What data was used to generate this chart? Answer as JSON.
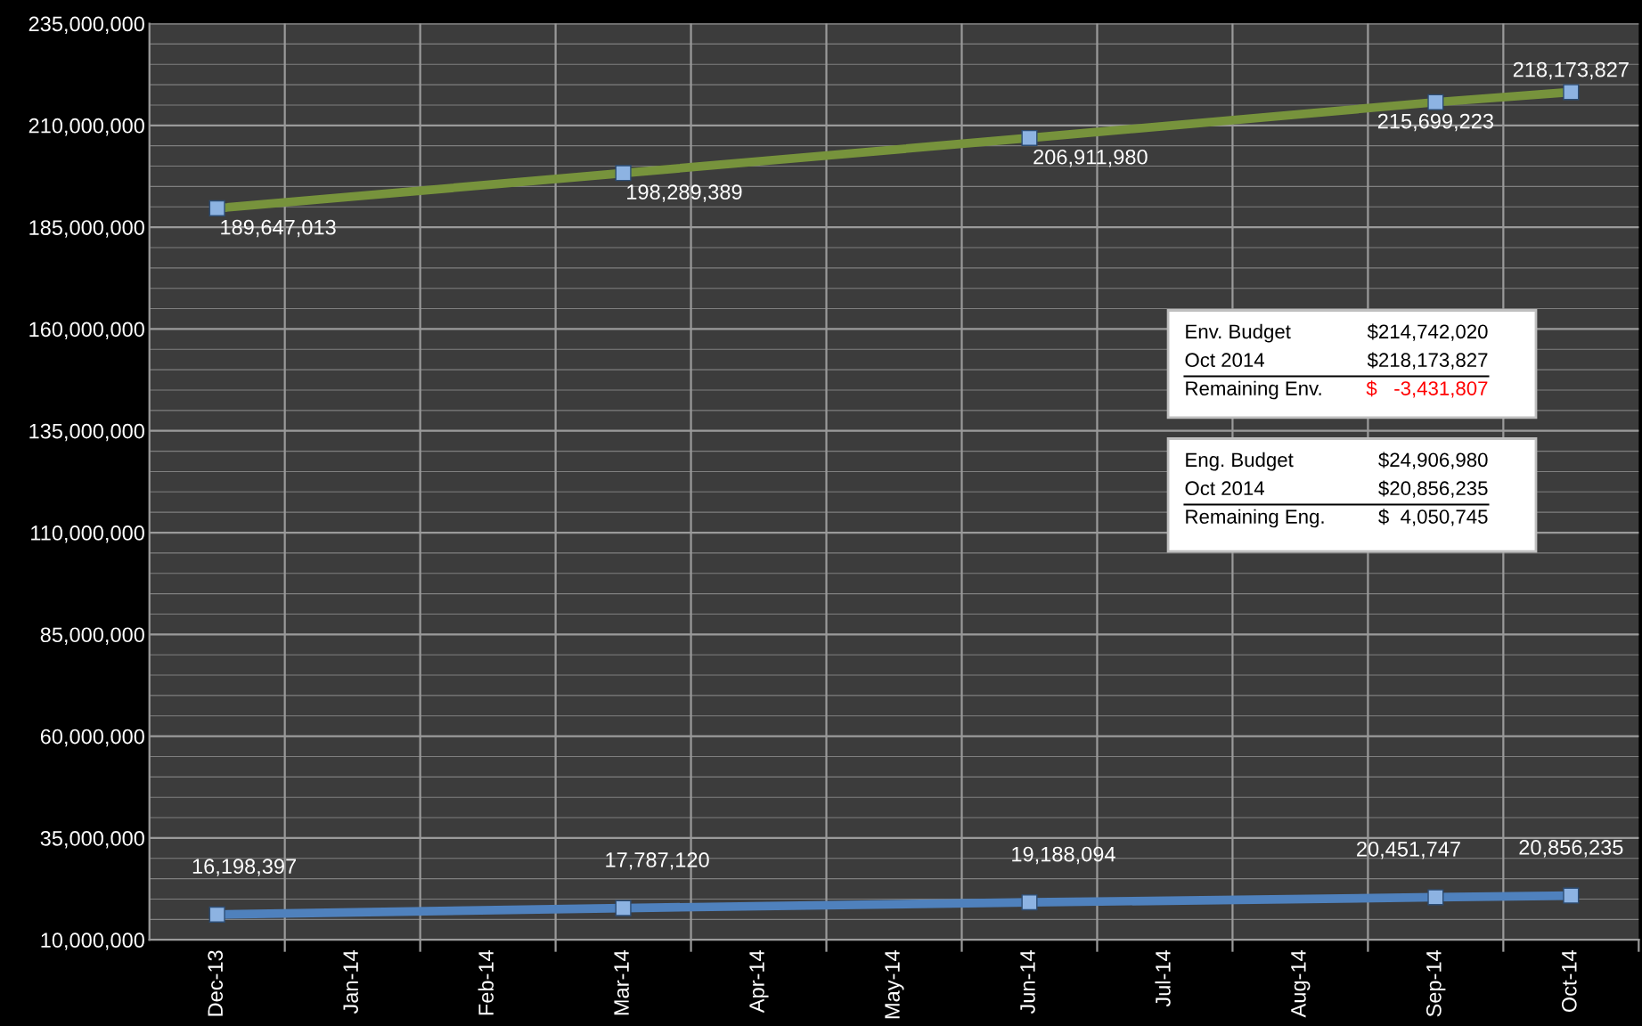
{
  "chart_data": {
    "type": "line",
    "categories": [
      "Dec-13",
      "Jan-14",
      "Feb-14",
      "Mar-14",
      "Apr-14",
      "May-14",
      "Jun-14",
      "Jul-14",
      "Aug-14",
      "Sep-14",
      "Oct-14"
    ],
    "series": [
      {
        "color": "#77933c",
        "values": [
          189647013,
          null,
          null,
          198289389,
          null,
          null,
          206911980,
          null,
          null,
          215699223,
          218173827
        ],
        "value_labels": [
          "189,647,013",
          null,
          null,
          "198,289,389",
          null,
          null,
          "206,911,980",
          null,
          null,
          "215,699,223",
          "218,173,827"
        ]
      },
      {
        "color": "#4f81bd",
        "values": [
          16198397,
          null,
          null,
          17787120,
          null,
          null,
          19188094,
          null,
          null,
          20451747,
          20856235
        ],
        "value_labels": [
          "16,198,397",
          null,
          null,
          "17,787,120",
          null,
          null,
          "19,188,094",
          null,
          null,
          "20,451,747",
          "20,856,235"
        ]
      }
    ],
    "ylim": [
      10000000,
      235000000
    ],
    "yticks": [
      {
        "value": 10000000,
        "label": "10,000,000"
      },
      {
        "value": 35000000,
        "label": "35,000,000"
      },
      {
        "value": 60000000,
        "label": "60,000,000"
      },
      {
        "value": 85000000,
        "label": "85,000,000"
      },
      {
        "value": 110000000,
        "label": "110,000,000"
      },
      {
        "value": 135000000,
        "label": "135,000,000"
      },
      {
        "value": 160000000,
        "label": "160,000,000"
      },
      {
        "value": 185000000,
        "label": "185,000,000"
      },
      {
        "value": 210000000,
        "label": "210,000,000"
      },
      {
        "value": 235000000,
        "label": "235,000,000"
      }
    ],
    "grid": true,
    "marker": "square",
    "line_style": "solid",
    "legend": false,
    "annotations": [
      "Env. Budget",
      "$214,742,020",
      "Oct 2014",
      "$218,173,827",
      "Remaining Env.",
      "$   -3,431,807",
      "Eng. Budget",
      "$24,906,980",
      "Oct 2014",
      "$20,856,235",
      "Remaining Eng.",
      "$  4,050,745"
    ]
  }
}
